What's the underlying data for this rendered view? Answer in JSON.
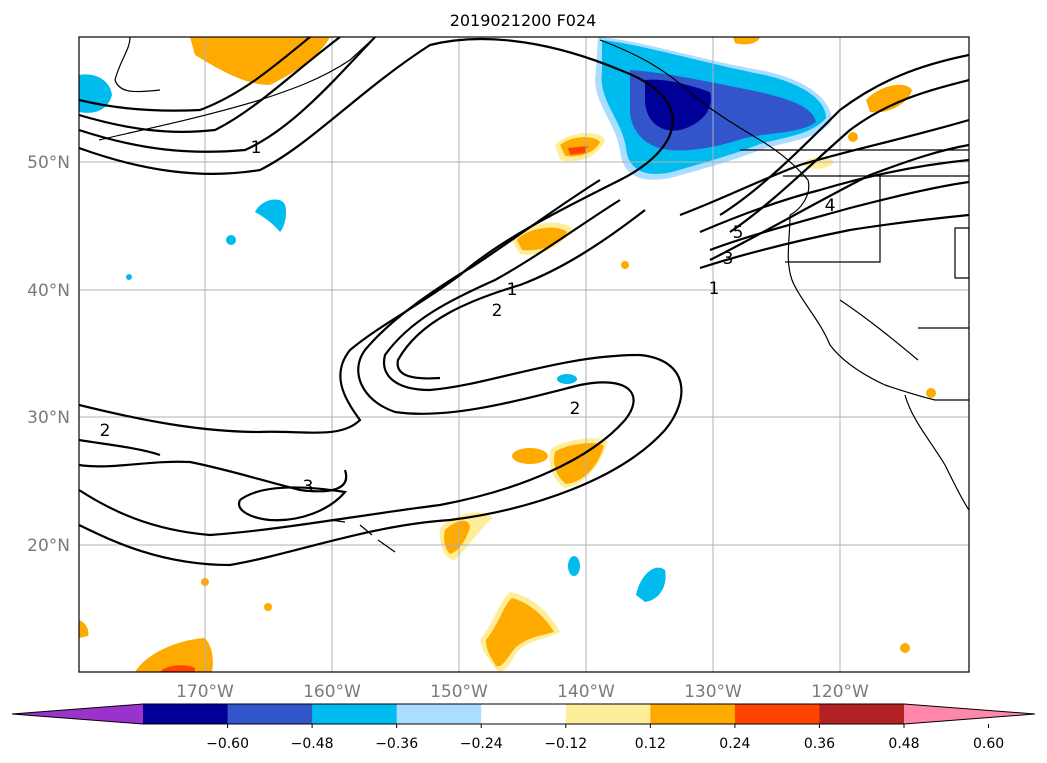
{
  "title": "2019021200 F024",
  "lat_labels": [
    "50°N",
    "40°N",
    "30°N",
    "20°N"
  ],
  "lon_labels": [
    "170°W",
    "160°W",
    "150°W",
    "140°W",
    "130°W",
    "120°W"
  ],
  "contour_labels": [
    "1",
    "2",
    "1",
    "2",
    "3",
    "4",
    "5",
    "1",
    "2",
    "3"
  ],
  "colorbar": {
    "ticks": [
      "−0.60",
      "−0.48",
      "−0.36",
      "−0.24",
      "−0.12",
      "0.12",
      "0.24",
      "0.36",
      "0.48",
      "0.60"
    ],
    "colors": {
      "under": "#9933cc",
      "bins": [
        "#000099",
        "#3355cc",
        "#00bbee",
        "#aaddff",
        "#ffffff",
        "#ffee99",
        "#ffaa00",
        "#ff4400",
        "#b22222"
      ],
      "over": "#ff88aa"
    }
  },
  "fill_colors": {
    "dark_blue": "#000099",
    "mid_blue": "#3355cc",
    "cyan": "#00bbee",
    "light_blue": "#aaddff",
    "light_yellow": "#ffee99",
    "orange": "#ffaa00",
    "red_orange": "#ff4400",
    "pink": "#ff88aa"
  }
}
